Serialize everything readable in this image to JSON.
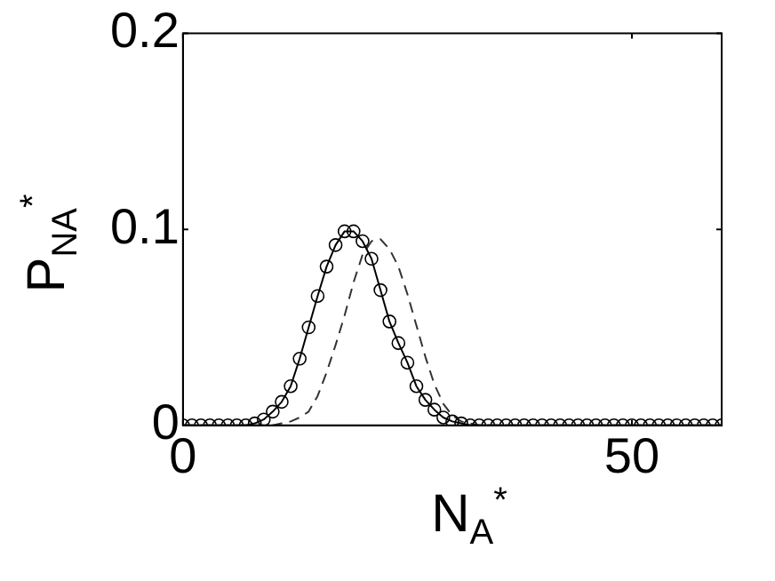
{
  "chart_data": {
    "type": "line",
    "xlabel": "N$_{A}$$^{*}$",
    "ylabel": "P$_{N}$$_{A}$$^{*}$",
    "x": [
      0,
      1,
      2,
      3,
      4,
      5,
      6,
      7,
      8,
      9,
      10,
      11,
      12,
      13,
      14,
      15,
      16,
      17,
      18,
      19,
      20,
      21,
      22,
      23,
      24,
      25,
      26,
      27,
      28,
      29,
      30,
      31,
      32,
      33,
      34,
      35,
      36,
      37,
      38,
      39,
      40,
      41,
      42,
      43,
      44,
      45,
      46,
      47,
      48,
      49,
      50,
      51,
      52,
      53,
      54,
      55,
      56,
      57,
      58,
      59,
      60
    ],
    "series": [
      {
        "color": "#000000",
        "marker": "circle",
        "line_style": "solid",
        "values": [
          0,
          0,
          0,
          0,
          0,
          0,
          0,
          0,
          0.001,
          0.003,
          0.007,
          0.012,
          0.02,
          0.034,
          0.05,
          0.066,
          0.081,
          0.092,
          0.099,
          0.099,
          0.094,
          0.085,
          0.069,
          0.053,
          0.042,
          0.032,
          0.02,
          0.013,
          0.008,
          0.004,
          0.002,
          0.001,
          0,
          0,
          0,
          0,
          0,
          0,
          0,
          0,
          0,
          0,
          0,
          0,
          0,
          0,
          0,
          0,
          0,
          0,
          0,
          0,
          0,
          0,
          0,
          0,
          0,
          0,
          0,
          0,
          0
        ]
      },
      {
        "color": "#333333",
        "marker": "none",
        "line_style": "dashed",
        "values": [
          0,
          0,
          0,
          0,
          0,
          0,
          0,
          0,
          0,
          0,
          0,
          0.001,
          0.002,
          0.004,
          0.007,
          0.015,
          0.027,
          0.041,
          0.056,
          0.073,
          0.087,
          0.094,
          0.095,
          0.09,
          0.081,
          0.067,
          0.051,
          0.035,
          0.021,
          0.011,
          0.005,
          0.002,
          0.001,
          0,
          0,
          0,
          0,
          0,
          0,
          0,
          0,
          0,
          0,
          0,
          0,
          0,
          0,
          0,
          0,
          0,
          0,
          0,
          0,
          0,
          0,
          0,
          0,
          0,
          0,
          0,
          0
        ]
      }
    ],
    "xlim": [
      0,
      60
    ],
    "xticks": [
      0,
      50
    ],
    "ylim": [
      0,
      0.2
    ],
    "yticks": [
      0,
      0.1,
      0.2
    ],
    "grid": false,
    "legend": false
  }
}
